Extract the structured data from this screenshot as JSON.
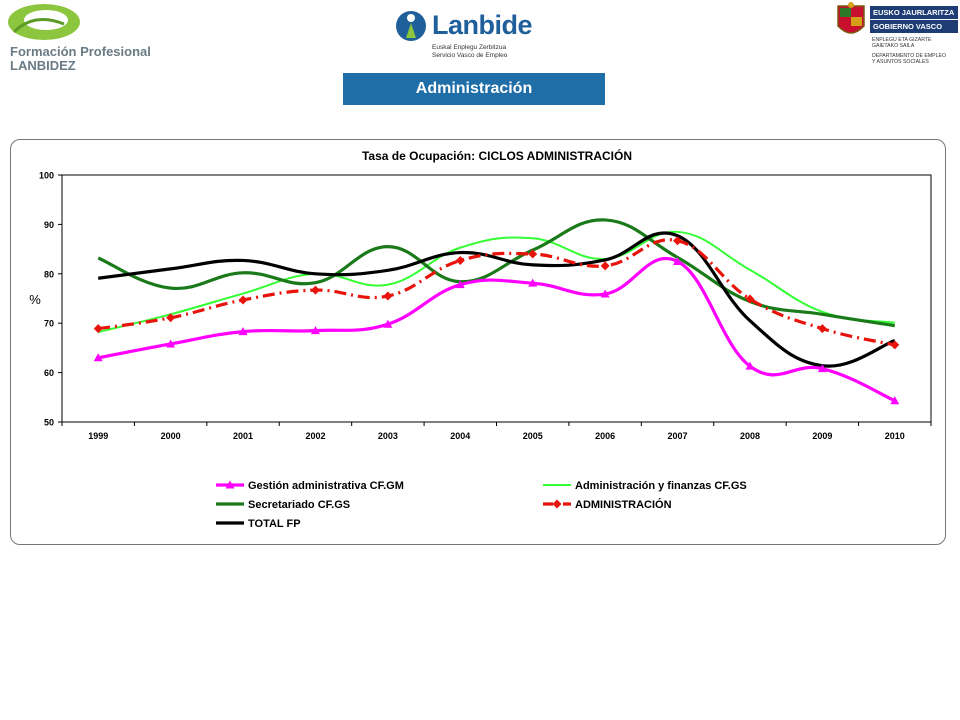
{
  "header": {
    "fp_logo_line1": "Formación Profesional",
    "fp_logo_line2": "LANBIDEZ",
    "lanbide_name": "Lanbide",
    "lanbide_sub1": "Euskal Enplegu Zerbitzua",
    "lanbide_sub2": "Servicio Vasco de Empleo",
    "gv_line1": "EUSKO JAURLARITZA",
    "gv_line2": "GOBIERNO VASCO",
    "gv_dept1": "ENPLEGU ETA GIZARTE",
    "gv_dept2": "GAIETAKO SAILA",
    "gv_dept3": "DEPARTAMENTO DE EMPLEO",
    "gv_dept4": "Y ASUNTOS SOCIALES"
  },
  "section_title": "Administración",
  "colors": {
    "magenta": "#ff00ff",
    "light_green": "#33ff33",
    "dark_green": "#1a7a1a",
    "red": "#e8140c",
    "black": "#000000",
    "title_band": "#1f6ea8"
  },
  "chart_data": {
    "type": "line",
    "title": "Tasa de Ocupación: CICLOS ADMINISTRACIÓN",
    "ylabel": "%",
    "xlabel": "",
    "categories": [
      "1999",
      "2000",
      "2001",
      "2002",
      "2003",
      "2004",
      "2005",
      "2006",
      "2007",
      "2008",
      "2009",
      "2010"
    ],
    "ylim": [
      50,
      100
    ],
    "yticks": [
      50,
      60,
      70,
      80,
      90,
      100
    ],
    "grid": false,
    "legend_position": "bottom",
    "series": [
      {
        "name": "Gestión administrativa CF.GM",
        "color": "#ff00ff",
        "marker": "triangle",
        "dash": "solid",
        "values": [
          63,
          65.8,
          68.3,
          68.5,
          69.8,
          77.8,
          78.1,
          75.9,
          82.5,
          61.3,
          60.8,
          54.3
        ]
      },
      {
        "name": "Administración y finanzas CF.GS",
        "color": "#33ff33",
        "marker": "none",
        "dash": "solid",
        "values": [
          68.2,
          71.8,
          76,
          80,
          77.8,
          85.3,
          87.2,
          83,
          88.5,
          80.8,
          72.3,
          70.1
        ]
      },
      {
        "name": "Secretariado CF.GS",
        "color": "#1a7a1a",
        "marker": "none",
        "dash": "solid",
        "values": [
          83.2,
          77.1,
          80.2,
          78.2,
          85.5,
          78.4,
          84.8,
          90.9,
          83.3,
          74.4,
          71.8,
          69.5
        ]
      },
      {
        "name": "ADMINISTRACIÓN",
        "color": "#e8140c",
        "marker": "diamond",
        "dash": "dashdot",
        "values": [
          68.9,
          71.1,
          74.7,
          76.7,
          75.5,
          82.7,
          84,
          81.6,
          86.7,
          74.9,
          68.9,
          65.6
        ]
      },
      {
        "name": "TOTAL FP",
        "color": "#000000",
        "marker": "none",
        "dash": "solid",
        "values": [
          79.1,
          81,
          82.7,
          80,
          80.7,
          84.3,
          81.8,
          82.8,
          87.7,
          70.5,
          61.4,
          66.5
        ]
      }
    ]
  }
}
